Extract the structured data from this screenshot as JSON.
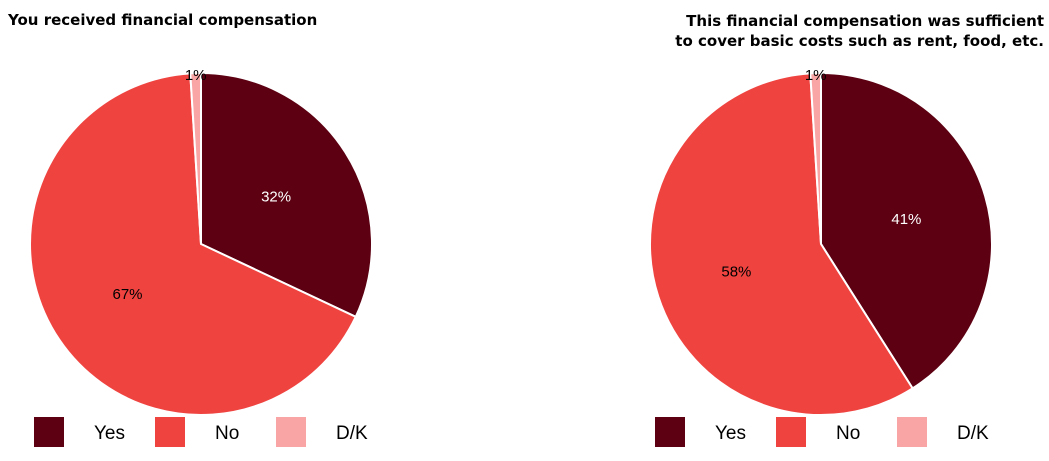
{
  "chart_data": [
    {
      "type": "pie",
      "title": "You received financial compensation",
      "categories": [
        "Yes",
        "No",
        "D/K"
      ],
      "values": [
        32,
        67,
        1
      ],
      "labels": [
        "32%",
        "67%",
        "1%"
      ],
      "colors": [
        "#5c0012",
        "#ef4340",
        "#f9a5a5"
      ],
      "legend": [
        "Yes",
        "No",
        "D/K"
      ],
      "legend_position": "bottom"
    },
    {
      "type": "pie",
      "title_lines": [
        "This financial compensation was sufficient",
        "to cover basic costs such as rent, food, etc."
      ],
      "categories": [
        "Yes",
        "No",
        "D/K"
      ],
      "values": [
        41,
        58,
        1
      ],
      "labels": [
        "41%",
        "58%",
        "1%"
      ],
      "colors": [
        "#5c0012",
        "#ef4340",
        "#f9a5a5"
      ],
      "legend": [
        "Yes",
        "No",
        "D/K"
      ],
      "legend_position": "bottom"
    }
  ]
}
